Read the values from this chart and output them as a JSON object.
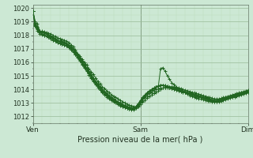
{
  "title": "Pression niveau de la mer( hPa )",
  "bg_color": "#cce8d4",
  "grid_major_color": "#99bb99",
  "grid_minor_color": "#bbddbb",
  "line_color": "#226622",
  "ylim": [
    1011.5,
    1020.25
  ],
  "ytick_vals": [
    1012,
    1013,
    1014,
    1015,
    1016,
    1017,
    1018,
    1019,
    1020
  ],
  "xtick_labels": [
    "Ven",
    "Sam",
    "Dim"
  ],
  "xtick_positions": [
    0,
    48,
    96
  ],
  "total_x": 97,
  "lines": [
    [
      1019.8,
      1019.05,
      1018.85,
      1018.3,
      1018.3,
      1018.25,
      1018.2,
      1018.15,
      1018.1,
      1018.0,
      1017.9,
      1017.8,
      1017.75,
      1017.7,
      1017.65,
      1017.55,
      1017.45,
      1017.3,
      1017.15,
      1016.9,
      1016.65,
      1016.45,
      1016.2,
      1016.0,
      1015.8,
      1015.55,
      1015.3,
      1015.1,
      1014.85,
      1014.6,
      1014.4,
      1014.2,
      1014.05,
      1013.9,
      1013.75,
      1013.6,
      1013.5,
      1013.4,
      1013.3,
      1013.2,
      1013.1,
      1013.0,
      1012.9,
      1012.85,
      1012.8,
      1012.75,
      1012.7,
      1012.75,
      1012.9,
      1013.05,
      1013.2,
      1013.35,
      1013.5,
      1013.6,
      1013.7,
      1013.8,
      1013.9,
      1014.0,
      1014.1,
      1014.15,
      1014.2,
      1014.2,
      1014.2,
      1014.2,
      1014.15,
      1014.1,
      1014.05,
      1014.0,
      1013.95,
      1013.9,
      1013.85,
      1013.8,
      1013.75,
      1013.7,
      1013.65,
      1013.6,
      1013.55,
      1013.5,
      1013.45,
      1013.4,
      1013.35,
      1013.3,
      1013.3,
      1013.3,
      1013.35,
      1013.4,
      1013.45,
      1013.5,
      1013.55,
      1013.6,
      1013.65,
      1013.7,
      1013.75,
      1013.8,
      1013.85,
      1013.9,
      1013.95
    ],
    [
      1019.8,
      1018.9,
      1018.6,
      1018.2,
      1018.1,
      1018.0,
      1017.95,
      1017.9,
      1017.85,
      1017.75,
      1017.65,
      1017.55,
      1017.5,
      1017.45,
      1017.4,
      1017.3,
      1017.2,
      1017.05,
      1016.9,
      1016.7,
      1016.5,
      1016.25,
      1016.0,
      1015.75,
      1015.5,
      1015.25,
      1015.0,
      1014.75,
      1014.5,
      1014.3,
      1014.1,
      1013.9,
      1013.75,
      1013.6,
      1013.45,
      1013.3,
      1013.2,
      1013.1,
      1013.0,
      1012.9,
      1012.8,
      1012.7,
      1012.6,
      1012.55,
      1012.5,
      1012.5,
      1012.6,
      1012.8,
      1013.0,
      1013.2,
      1013.4,
      1013.55,
      1013.7,
      1013.8,
      1013.9,
      1014.0,
      1014.05,
      1014.1,
      1014.1,
      1014.1,
      1014.1,
      1014.1,
      1014.05,
      1014.0,
      1013.95,
      1013.9,
      1013.85,
      1013.8,
      1013.75,
      1013.7,
      1013.65,
      1013.6,
      1013.55,
      1013.5,
      1013.45,
      1013.4,
      1013.35,
      1013.3,
      1013.25,
      1013.2,
      1013.15,
      1013.1,
      1013.1,
      1013.1,
      1013.15,
      1013.2,
      1013.25,
      1013.3,
      1013.35,
      1013.4,
      1013.45,
      1013.5,
      1013.55,
      1013.6,
      1013.65,
      1013.7,
      1013.75
    ],
    [
      1019.8,
      1018.75,
      1018.45,
      1018.2,
      1018.2,
      1018.15,
      1018.1,
      1018.05,
      1017.95,
      1017.85,
      1017.75,
      1017.65,
      1017.6,
      1017.55,
      1017.5,
      1017.4,
      1017.3,
      1017.15,
      1017.0,
      1016.8,
      1016.6,
      1016.35,
      1016.1,
      1015.85,
      1015.6,
      1015.35,
      1015.1,
      1014.85,
      1014.6,
      1014.4,
      1014.2,
      1014.0,
      1013.85,
      1013.7,
      1013.55,
      1013.4,
      1013.3,
      1013.2,
      1013.1,
      1013.0,
      1012.9,
      1012.82,
      1012.75,
      1012.7,
      1012.65,
      1012.65,
      1012.75,
      1012.95,
      1013.2,
      1013.4,
      1013.6,
      1013.75,
      1013.9,
      1014.0,
      1014.1,
      1014.2,
      1014.25,
      1014.3,
      1014.3,
      1014.3,
      1014.25,
      1014.2,
      1014.15,
      1014.1,
      1014.05,
      1014.0,
      1013.95,
      1013.9,
      1013.85,
      1013.8,
      1013.75,
      1013.7,
      1013.65,
      1013.6,
      1013.55,
      1013.5,
      1013.45,
      1013.4,
      1013.35,
      1013.3,
      1013.25,
      1013.2,
      1013.2,
      1013.2,
      1013.25,
      1013.3,
      1013.35,
      1013.4,
      1013.45,
      1013.5,
      1013.55,
      1013.6,
      1013.65,
      1013.7,
      1013.75,
      1013.8,
      1013.85
    ],
    [
      1019.8,
      1018.8,
      1018.5,
      1018.35,
      1018.25,
      1018.2,
      1018.1,
      1018.0,
      1017.9,
      1017.8,
      1017.7,
      1017.6,
      1017.55,
      1017.5,
      1017.45,
      1017.35,
      1017.25,
      1017.1,
      1016.95,
      1016.75,
      1016.55,
      1016.3,
      1016.05,
      1015.8,
      1015.55,
      1015.3,
      1015.05,
      1014.8,
      1014.55,
      1014.35,
      1014.15,
      1013.95,
      1013.8,
      1013.65,
      1013.5,
      1013.35,
      1013.25,
      1013.15,
      1013.05,
      1012.95,
      1012.85,
      1012.77,
      1012.7,
      1012.65,
      1012.6,
      1012.62,
      1012.72,
      1012.92,
      1013.15,
      1013.35,
      1013.55,
      1013.72,
      1013.88,
      1014.0,
      1014.1,
      1014.2,
      1014.27,
      1014.32,
      1014.32,
      1014.28,
      1014.22,
      1014.15,
      1014.1,
      1014.05,
      1014.0,
      1013.95,
      1013.9,
      1013.85,
      1013.8,
      1013.75,
      1013.7,
      1013.65,
      1013.6,
      1013.55,
      1013.5,
      1013.45,
      1013.4,
      1013.35,
      1013.3,
      1013.25,
      1013.2,
      1013.2,
      1013.2,
      1013.25,
      1013.3,
      1013.35,
      1013.4,
      1013.45,
      1013.5,
      1013.55,
      1013.6,
      1013.65,
      1013.7,
      1013.75,
      1013.8,
      1013.85,
      1013.9
    ],
    [
      1019.8,
      1018.85,
      1018.55,
      1018.25,
      1018.1,
      1018.05,
      1017.95,
      1017.85,
      1017.75,
      1017.65,
      1017.55,
      1017.45,
      1017.4,
      1017.35,
      1017.3,
      1017.2,
      1017.1,
      1016.95,
      1016.8,
      1016.6,
      1016.4,
      1016.15,
      1015.9,
      1015.65,
      1015.4,
      1015.15,
      1014.9,
      1014.65,
      1014.42,
      1014.22,
      1014.02,
      1013.82,
      1013.67,
      1013.52,
      1013.38,
      1013.25,
      1013.15,
      1013.05,
      1012.95,
      1012.85,
      1012.75,
      1012.68,
      1012.62,
      1012.58,
      1012.55,
      1012.58,
      1012.68,
      1012.88,
      1013.1,
      1013.3,
      1013.52,
      1013.68,
      1013.85,
      1013.97,
      1014.08,
      1014.18,
      1014.25,
      1014.3,
      1014.3,
      1014.26,
      1014.2,
      1014.14,
      1014.08,
      1014.02,
      1013.96,
      1013.9,
      1013.85,
      1013.8,
      1013.75,
      1013.7,
      1013.65,
      1013.6,
      1013.55,
      1013.5,
      1013.45,
      1013.4,
      1013.35,
      1013.3,
      1013.25,
      1013.2,
      1013.15,
      1013.15,
      1013.15,
      1013.2,
      1013.25,
      1013.3,
      1013.35,
      1013.4,
      1013.45,
      1013.5,
      1013.55,
      1013.6,
      1013.65,
      1013.7,
      1013.75,
      1013.8,
      1013.85
    ],
    [
      1019.8,
      1018.65,
      1018.35,
      1018.1,
      1018.05,
      1018.0,
      1017.92,
      1017.84,
      1017.74,
      1017.64,
      1017.54,
      1017.44,
      1017.39,
      1017.34,
      1017.29,
      1017.19,
      1017.09,
      1016.92,
      1016.75,
      1016.55,
      1016.33,
      1016.08,
      1015.83,
      1015.58,
      1015.33,
      1015.08,
      1014.83,
      1014.58,
      1014.35,
      1014.15,
      1013.95,
      1013.75,
      1013.6,
      1013.45,
      1013.32,
      1013.2,
      1013.1,
      1013.0,
      1012.9,
      1012.8,
      1012.72,
      1012.65,
      1012.6,
      1012.56,
      1012.53,
      1012.56,
      1012.66,
      1012.86,
      1013.08,
      1013.28,
      1013.5,
      1013.66,
      1013.82,
      1013.95,
      1014.06,
      1014.16,
      1014.23,
      1015.55,
      1015.6,
      1015.35,
      1015.0,
      1014.75,
      1014.5,
      1014.35,
      1014.2,
      1014.05,
      1013.95,
      1013.85,
      1013.75,
      1013.65,
      1013.57,
      1013.5,
      1013.44,
      1013.38,
      1013.33,
      1013.28,
      1013.24,
      1013.2,
      1013.16,
      1013.12,
      1013.1,
      1013.1,
      1013.1,
      1013.15,
      1013.2,
      1013.25,
      1013.3,
      1013.35,
      1013.4,
      1013.45,
      1013.5,
      1013.55,
      1013.6,
      1013.65,
      1013.7,
      1013.75,
      1013.8
    ]
  ]
}
